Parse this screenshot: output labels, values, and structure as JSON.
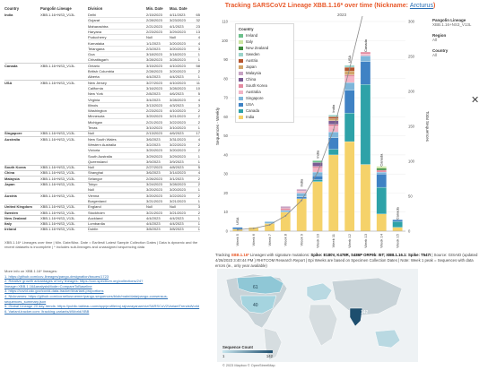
{
  "table": {
    "headers": [
      "Country",
      "Pangolin Lineage",
      "Division",
      "Min. Date",
      "Max. Date",
      ""
    ],
    "rows": [
      [
        "India",
        "XBB.1.16+NS3_V13L",
        "Delhi",
        "2/15/2023",
        "4/11/2023",
        "65"
      ],
      [
        "",
        "",
        "Gujarat",
        "2/28/2023",
        "3/23/2023",
        "32"
      ],
      [
        "",
        "",
        "Maharashtra",
        "2/21/2023",
        "4/1/2023",
        "23"
      ],
      [
        "",
        "",
        "Haryana",
        "2/23/2023",
        "3/29/2023",
        "13"
      ],
      [
        "",
        "",
        "Puducherry",
        "Null",
        "Null",
        "4"
      ],
      [
        "",
        "",
        "Karnataka",
        "1/1/2023",
        "3/20/2023",
        "4"
      ],
      [
        "",
        "",
        "Telangana",
        "2/3/2023",
        "3/20/2023",
        "3"
      ],
      [
        "",
        "",
        "Goa",
        "3/18/2023",
        "3/18/2023",
        "1"
      ],
      [
        "",
        "",
        "Chhattisgarh",
        "3/28/2023",
        "3/28/2023",
        "1"
      ],
      [
        "Canada",
        "XBB.1.16+NS3_V13L",
        "Ontario",
        "3/15/2023",
        "4/10/2023",
        "58"
      ],
      [
        "",
        "",
        "British Columbia",
        "2/28/2023",
        "3/20/2023",
        "2"
      ],
      [
        "",
        "",
        "Alberta",
        "4/4/2023",
        "4/4/2023",
        "1"
      ],
      [
        "USA",
        "XBB.1.16+NS3_V13L",
        "New Jersey",
        "3/27/2023",
        "4/10/2023",
        "11"
      ],
      [
        "",
        "",
        "California",
        "3/16/2023",
        "3/28/2023",
        "10"
      ],
      [
        "",
        "",
        "New York",
        "2/8/2023",
        "4/6/2023",
        "5"
      ],
      [
        "",
        "",
        "Virginia",
        "3/4/2023",
        "3/28/2023",
        "4"
      ],
      [
        "",
        "",
        "Illinois",
        "3/13/2023",
        "4/3/2023",
        "3"
      ],
      [
        "",
        "",
        "Washington",
        "2/23/2023",
        "4/10/2023",
        "2"
      ],
      [
        "",
        "",
        "Minnesota",
        "3/20/2023",
        "3/21/2023",
        "2"
      ],
      [
        "",
        "",
        "Michigan",
        "2/21/2023",
        "3/22/2023",
        "2"
      ],
      [
        "",
        "",
        "Texas",
        "3/10/2023",
        "3/10/2023",
        "1"
      ],
      [
        "Singapore",
        "XBB.1.16+NS3_V13L",
        "Null",
        "2/13/2023",
        "4/6/2023",
        "17"
      ],
      [
        "Australia",
        "XBB.1.16+NS3_V13L",
        "New South Wales",
        "3/6/2023",
        "3/31/2023",
        "4"
      ],
      [
        "",
        "",
        "Western Australia",
        "3/2/2023",
        "3/22/2023",
        "2"
      ],
      [
        "",
        "",
        "Victoria",
        "3/20/2023",
        "3/20/2023",
        "2"
      ],
      [
        "",
        "",
        "South Australia",
        "3/29/2023",
        "3/29/2023",
        "1"
      ],
      [
        "",
        "",
        "Queensland",
        "3/9/2023",
        "3/9/2023",
        "1"
      ],
      [
        "South Korea",
        "XBB.1.16+NS3_V13L",
        "Null",
        "2/27/2023",
        "4/8/2023",
        "5"
      ],
      [
        "China",
        "XBB.1.16+NS3_V13L",
        "Shanghai",
        "3/6/2023",
        "3/14/2023",
        "4"
      ],
      [
        "Malaysia",
        "XBB.1.16+NS3_V13L",
        "Selangor",
        "2/26/2023",
        "3/1/2023",
        "2"
      ],
      [
        "Japan",
        "XBB.1.16+NS3_V13L",
        "Tokyo",
        "3/24/2023",
        "3/28/2023",
        "2"
      ],
      [
        "",
        "",
        "Null",
        "3/20/2023",
        "3/20/2023",
        "1"
      ],
      [
        "Austria",
        "XBB.1.16+NS3_V13L",
        "Vienna",
        "3/20/2023",
        "3/22/2023",
        "2"
      ],
      [
        "",
        "",
        "Burgenland",
        "3/21/2023",
        "3/21/2023",
        "1"
      ],
      [
        "United Kingdom",
        "XBB.1.16+NS3_V13L",
        "England",
        "Null",
        "Null",
        "3"
      ],
      [
        "Sweden",
        "XBB.1.16+NS3_V13L",
        "Stockholm",
        "3/21/2023",
        "3/21/2023",
        "2"
      ],
      [
        "New Zealand",
        "XBB.1.16+NS3_V13L",
        "Auckland",
        "4/4/2023",
        "4/4/2023",
        "1"
      ],
      [
        "Italy",
        "XBB.1.16+NS3_V13L",
        "Lombardia",
        "4/4/2023",
        "4/4/2023",
        "1"
      ],
      [
        "Ireland",
        "XBB.1.16+NS3_V13L",
        "Dublin",
        "3/8/2023",
        "3/8/2023",
        "1"
      ]
    ],
    "footnote": "XBB.1.16* Lineages over time | Min. Date/Max. Date = Earliest/ Latest Sample Collection Dates | Data is dynamic and the recent datasets is incomplete | * includes sub-lineages and unassigned sequencing data"
  },
  "more_info": {
    "heading": "More info on XBB.1.16* lineages:",
    "links": [
      "1. https://github.com/cov-lineages/pango-designation/issues/1723",
      "2. Relative growth advantages of key lineages: https://cov-spectrum.org/collections/24?lineage=XBB.1.16&analysisMode=CompareToBaseline",
      "3. https://covid.cdc.gov/covid-data-tracker/#variant-proportions",
      "4. Nicknames: https://github.com/corneliusroemer/pango-sequences/blob/main/data/pango-consensus-sequences_summary.json",
      "5. Global Lineage 20 day trends: https://public.tableau.com/app/profile/raj.rajnarayanan/viz/SARSCoV2VariantTrendsWorld",
      "6. Variant-tracker.com: /tracking-variants/#World/XBB"
    ]
  },
  "chart_title": "Tracking SARSCoV2 Lineage XBB.1.16* over time (Nickname: ",
  "chart_nickname": "Arcturus",
  "chart_title_end": ")",
  "year_label": "2023",
  "legend_items": [
    {
      "name": "Country",
      "color": "#ffffff"
    },
    {
      "name": "Ireland",
      "color": "#6cc08b"
    },
    {
      "name": "Italy",
      "color": "#cbe5a0"
    },
    {
      "name": "New Zealand",
      "color": "#3d8b3d"
    },
    {
      "name": "Sweden",
      "color": "#9bd3c9"
    },
    {
      "name": "Austria",
      "color": "#b5542d"
    },
    {
      "name": "Japan",
      "color": "#d2a56a"
    },
    {
      "name": "Malaysia",
      "color": "#c7a3c4"
    },
    {
      "name": "China",
      "color": "#7a5b93"
    },
    {
      "name": "South Korea",
      "color": "#e48aa0"
    },
    {
      "name": "Australia",
      "color": "#f3b4c6"
    },
    {
      "name": "Singapore",
      "color": "#7fb6da"
    },
    {
      "name": "USA",
      "color": "#3f82c4"
    },
    {
      "name": "Canada",
      "color": "#2ea2a8"
    },
    {
      "name": "India",
      "color": "#f5d26a"
    }
  ],
  "chart_data": {
    "type": "bar",
    "title": "Tracking SARSCoV2 Lineage XBB.1.16* over time (Nickname: Arcturus)",
    "xlabel": "",
    "ylabel": "Sequences - Weekly",
    "y2label": "Total Sequences",
    "categories": [
      "Week 5",
      "Week 6",
      "Week 7",
      "Week 8",
      "Week 9",
      "Week 10",
      "Week 11",
      "Week 12",
      "Week 13",
      "Week 14",
      "Week 15"
    ],
    "ylim": [
      0,
      110
    ],
    "y2lim": [
      0,
      300
    ],
    "yticks": [
      0,
      10,
      20,
      30,
      40,
      50,
      60,
      70,
      80,
      90,
      100,
      110
    ],
    "y2ticks": [
      0,
      50,
      100,
      150,
      200,
      250,
      300
    ],
    "bar_labels": [
      "USA",
      "",
      "",
      "",
      "India",
      "India",
      "India",
      "USA",
      "Canada",
      "Canada",
      "Canada"
    ],
    "series": [
      {
        "name": "India",
        "values": [
          1,
          2,
          4,
          10,
          17,
          26,
          40,
          47,
          35,
          9,
          2
        ]
      },
      {
        "name": "Canada",
        "values": [
          0,
          0,
          0,
          0,
          0,
          1,
          3,
          15,
          42,
          14,
          3
        ]
      },
      {
        "name": "USA",
        "values": [
          1,
          0,
          0,
          0,
          1,
          2,
          6,
          12,
          12,
          7,
          1
        ]
      },
      {
        "name": "Singapore",
        "values": [
          0,
          0,
          1,
          1,
          2,
          2,
          3,
          4,
          3,
          1,
          0
        ]
      },
      {
        "name": "Australia",
        "values": [
          0,
          0,
          0,
          0,
          1,
          2,
          3,
          3,
          1,
          0,
          0
        ]
      },
      {
        "name": "South Korea",
        "values": [
          0,
          0,
          0,
          1,
          0,
          1,
          1,
          1,
          1,
          1,
          0
        ]
      },
      {
        "name": "China",
        "values": [
          0,
          0,
          0,
          0,
          0,
          2,
          2,
          0,
          0,
          0,
          0
        ]
      },
      {
        "name": "Malaysia",
        "values": [
          0,
          0,
          0,
          1,
          1,
          0,
          0,
          0,
          0,
          0,
          0
        ]
      },
      {
        "name": "Japan",
        "values": [
          0,
          0,
          0,
          0,
          0,
          0,
          1,
          2,
          0,
          0,
          0
        ]
      },
      {
        "name": "Austria",
        "values": [
          0,
          0,
          0,
          0,
          0,
          0,
          1,
          2,
          0,
          0,
          0
        ]
      },
      {
        "name": "Sweden",
        "values": [
          0,
          0,
          0,
          0,
          0,
          0,
          1,
          1,
          0,
          0,
          0
        ]
      },
      {
        "name": "New Zealand",
        "values": [
          0,
          0,
          0,
          0,
          0,
          0,
          0,
          0,
          0,
          1,
          0
        ]
      },
      {
        "name": "Italy",
        "values": [
          0,
          0,
          0,
          0,
          0,
          0,
          0,
          0,
          0,
          1,
          0
        ]
      },
      {
        "name": "Ireland",
        "values": [
          0,
          0,
          0,
          0,
          0,
          1,
          0,
          0,
          0,
          0,
          0
        ]
      }
    ],
    "cumulative": [
      2,
      4,
      9,
      22,
      44,
      84,
      145,
      232,
      326,
      360,
      366
    ]
  },
  "side_filters": {
    "lineage_label": "Pangolin Lineage",
    "lineage_value": "XBB.1.16+NS3_V13L",
    "region_label": "Region",
    "region_value": "All",
    "country_label": "Country",
    "country_value": "All"
  },
  "close_symbol": "✕",
  "caption": {
    "lead": "Tracking ",
    "lineage": "XBB.1.16*",
    "mid": " Lineages with signature mutations: ",
    "mutations": "Spike: E180V, K478R, S486P ORF9b: I5T; XBB.1.16.1: Spike: T547I",
    "tail": " | Source: GISAID (updated 4/26/2023 3:40:44 PM ) RHITCOM Research Report | Epi Weeks are based on Specimen Collection Dates | Note: Week 1 peak = Sequences with data errors (ie., only year available)"
  },
  "map": {
    "labels": [
      "61",
      "40",
      "142"
    ],
    "legend_title": "Sequence Count",
    "legend_min": "1",
    "legend_max": "142",
    "copyright": "© 2023 Mapbox © OpenStreetMap"
  }
}
